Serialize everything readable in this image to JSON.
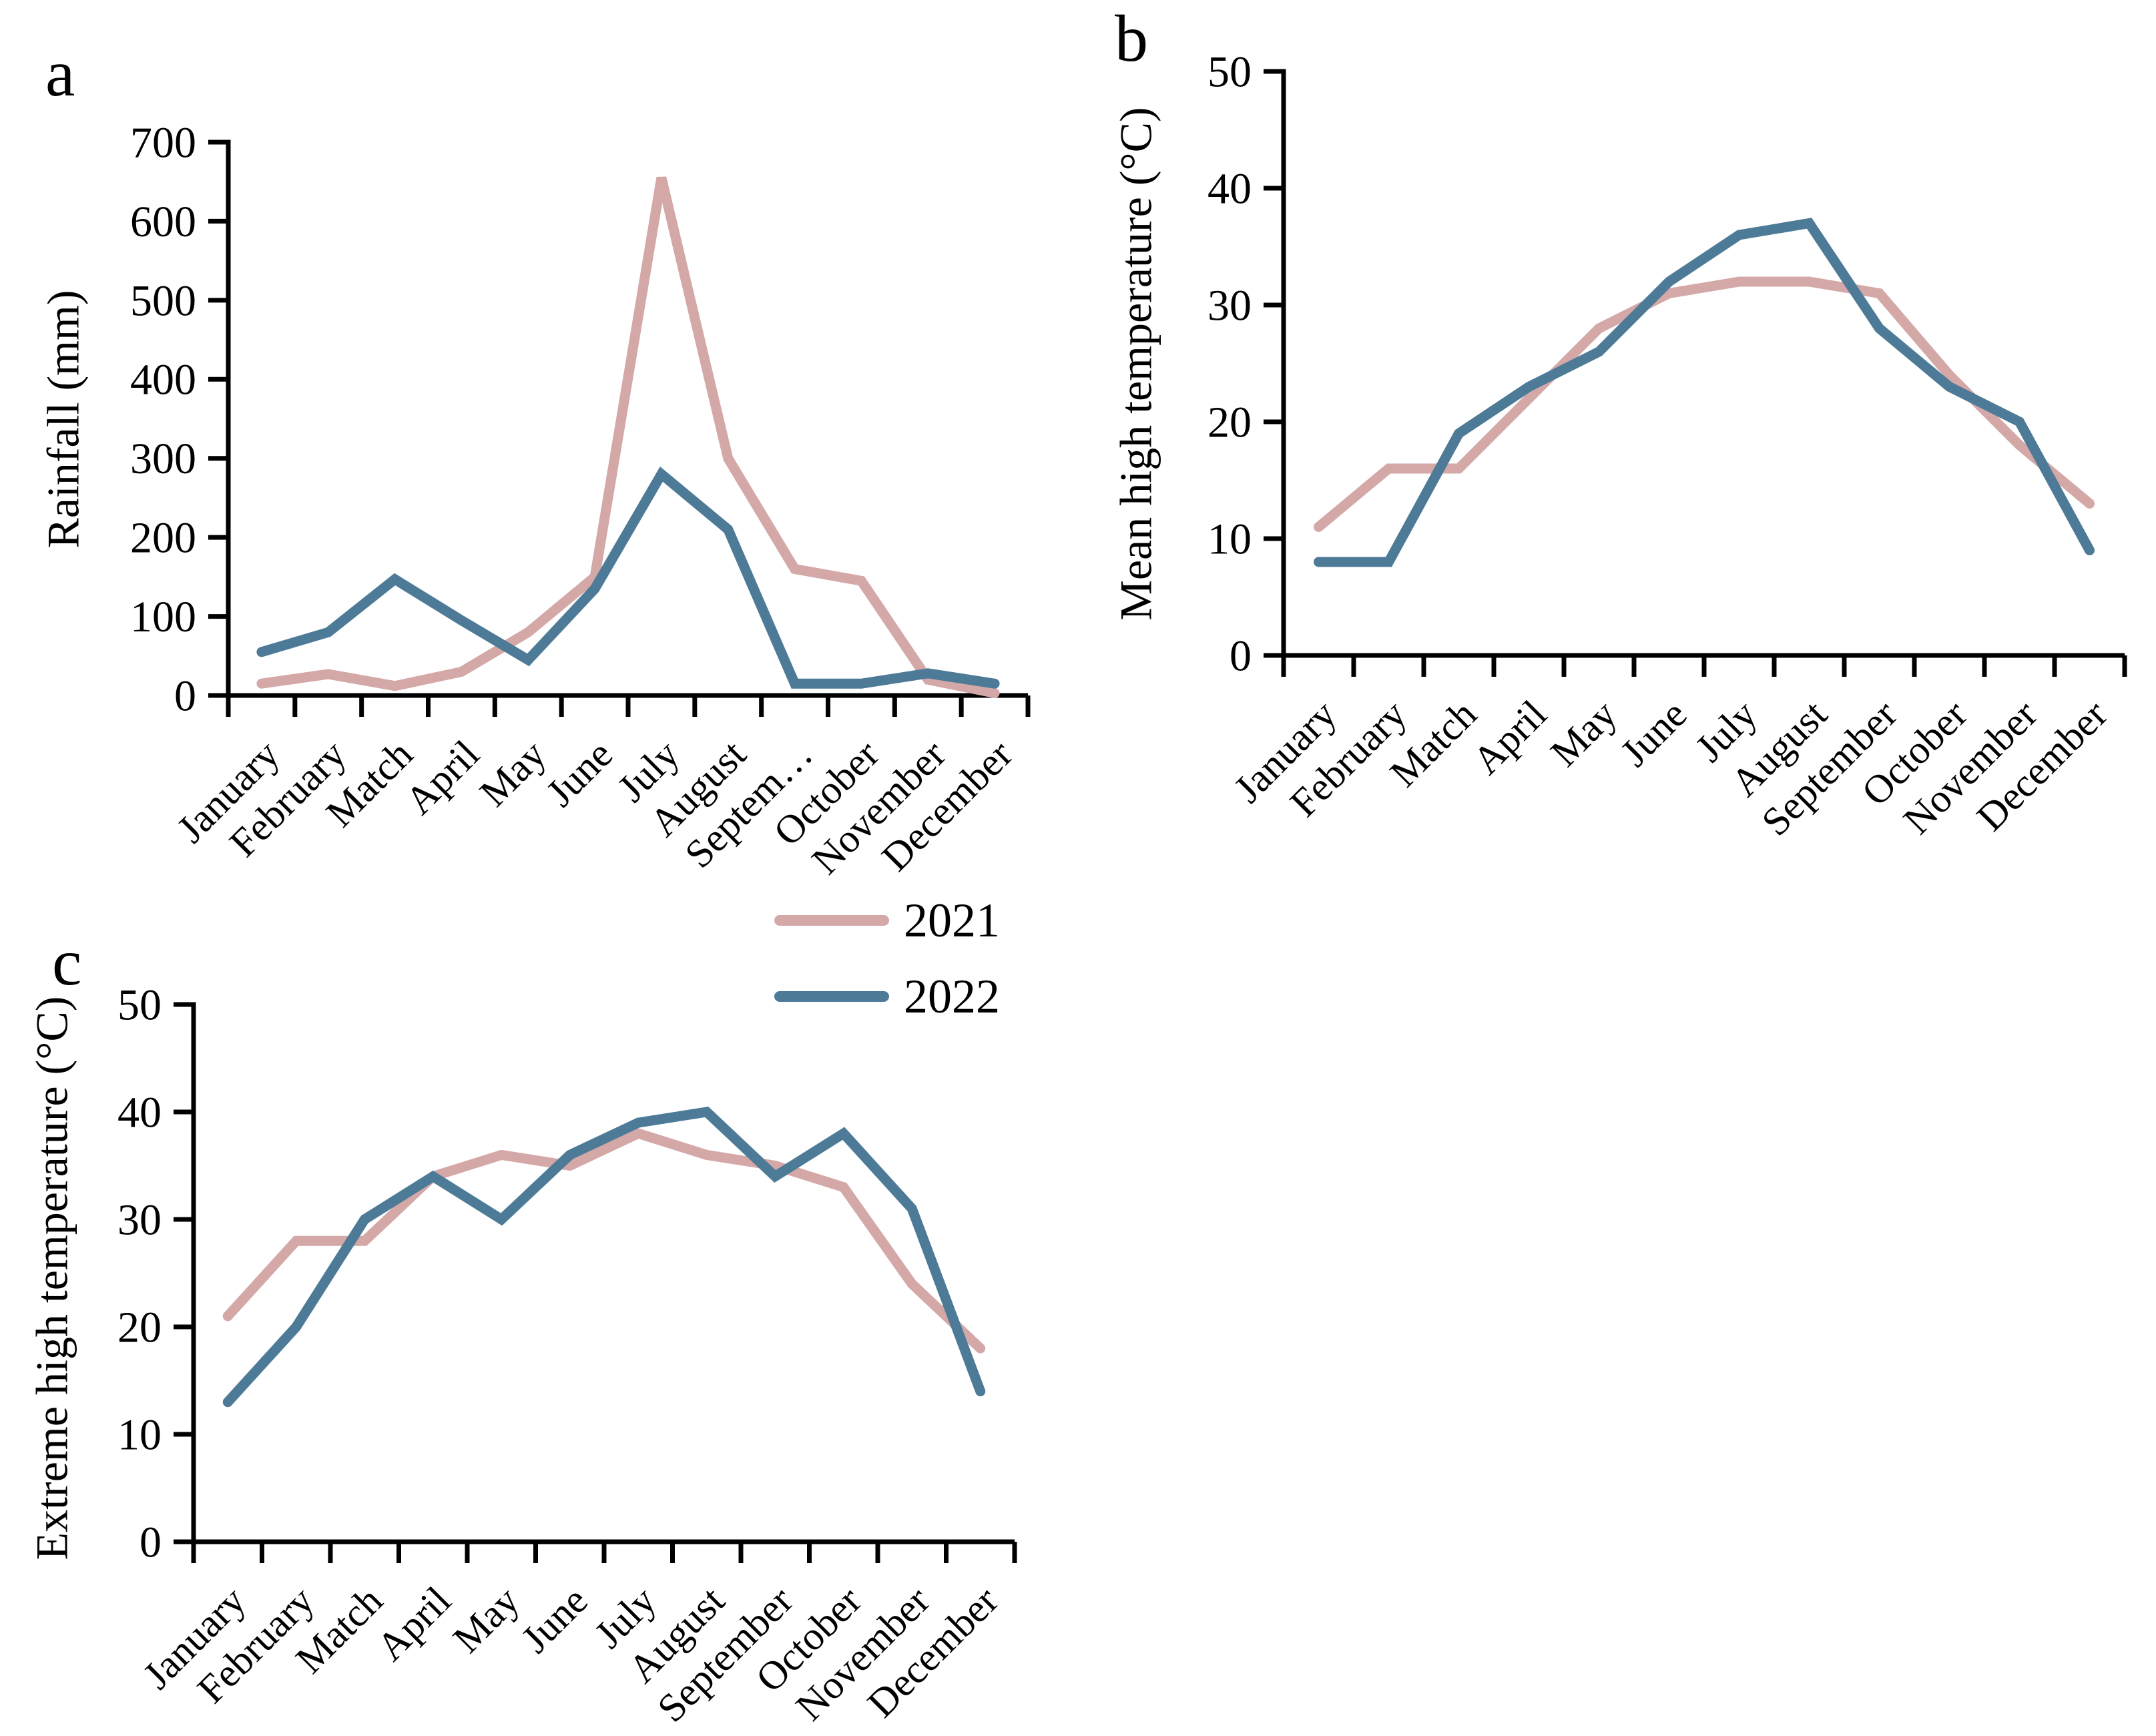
{
  "page": {
    "background": "#ffffff"
  },
  "colors": {
    "series_2021": "#d5a8a8",
    "series_2022": "#4d7b97",
    "axis": "#000000",
    "text": "#000000"
  },
  "legend": {
    "items": [
      {
        "label": "2021",
        "color": "#d5a8a8"
      },
      {
        "label": "2022",
        "color": "#4d7b97"
      }
    ]
  },
  "chart_data": [
    {
      "id": "a",
      "panel_letter": "a",
      "type": "line",
      "title": "",
      "xlabel": "",
      "ylabel": "Rainfall (mm)",
      "ylim": [
        0,
        700
      ],
      "yticks": [
        0,
        100,
        200,
        300,
        400,
        500,
        600,
        700
      ],
      "grid": false,
      "legend_position": "none",
      "categories": [
        "January",
        "February",
        "Match",
        "April",
        "May",
        "June",
        "July",
        "August",
        "Septem…",
        "October",
        "November",
        "December"
      ],
      "series": [
        {
          "name": "2021",
          "color": "#d5a8a8",
          "values": [
            15,
            27,
            12,
            30,
            80,
            150,
            655,
            300,
            160,
            145,
            20,
            3
          ]
        },
        {
          "name": "2022",
          "color": "#4d7b97",
          "values": [
            55,
            80,
            147,
            95,
            45,
            135,
            280,
            210,
            15,
            15,
            28,
            15
          ]
        }
      ]
    },
    {
      "id": "b",
      "panel_letter": "b",
      "type": "line",
      "title": "",
      "xlabel": "",
      "ylabel": "Mean high temperature (°C)",
      "ylim": [
        0,
        50
      ],
      "yticks": [
        0,
        10,
        20,
        30,
        40,
        50
      ],
      "grid": false,
      "legend_position": "none",
      "categories": [
        "January",
        "February",
        "Match",
        "April",
        "May",
        "June",
        "July",
        "August",
        "September",
        "October",
        "November",
        "December"
      ],
      "series": [
        {
          "name": "2021",
          "color": "#d5a8a8",
          "values": [
            11,
            16,
            16,
            22,
            28,
            31,
            32,
            32,
            31,
            24,
            18,
            13
          ]
        },
        {
          "name": "2022",
          "color": "#4d7b97",
          "values": [
            8,
            8,
            19,
            23,
            26,
            32,
            36,
            37,
            28,
            23,
            20,
            9
          ]
        }
      ]
    },
    {
      "id": "c",
      "panel_letter": "c",
      "type": "line",
      "title": "",
      "xlabel": "",
      "ylabel": "Extreme high temperature (°C)",
      "ylim": [
        0,
        50
      ],
      "yticks": [
        0,
        10,
        20,
        30,
        40,
        50
      ],
      "grid": false,
      "legend_position": "top-right",
      "categories": [
        "January",
        "February",
        "Match",
        "April",
        "May",
        "June",
        "July",
        "August",
        "September",
        "October",
        "November",
        "December"
      ],
      "series": [
        {
          "name": "2021",
          "color": "#d5a8a8",
          "values": [
            21,
            28,
            28,
            34,
            36,
            35,
            38,
            36,
            35,
            33,
            24,
            18
          ]
        },
        {
          "name": "2022",
          "color": "#4d7b97",
          "values": [
            13,
            20,
            30,
            34,
            30,
            36,
            39,
            40,
            34,
            38,
            31,
            14
          ]
        }
      ]
    }
  ]
}
